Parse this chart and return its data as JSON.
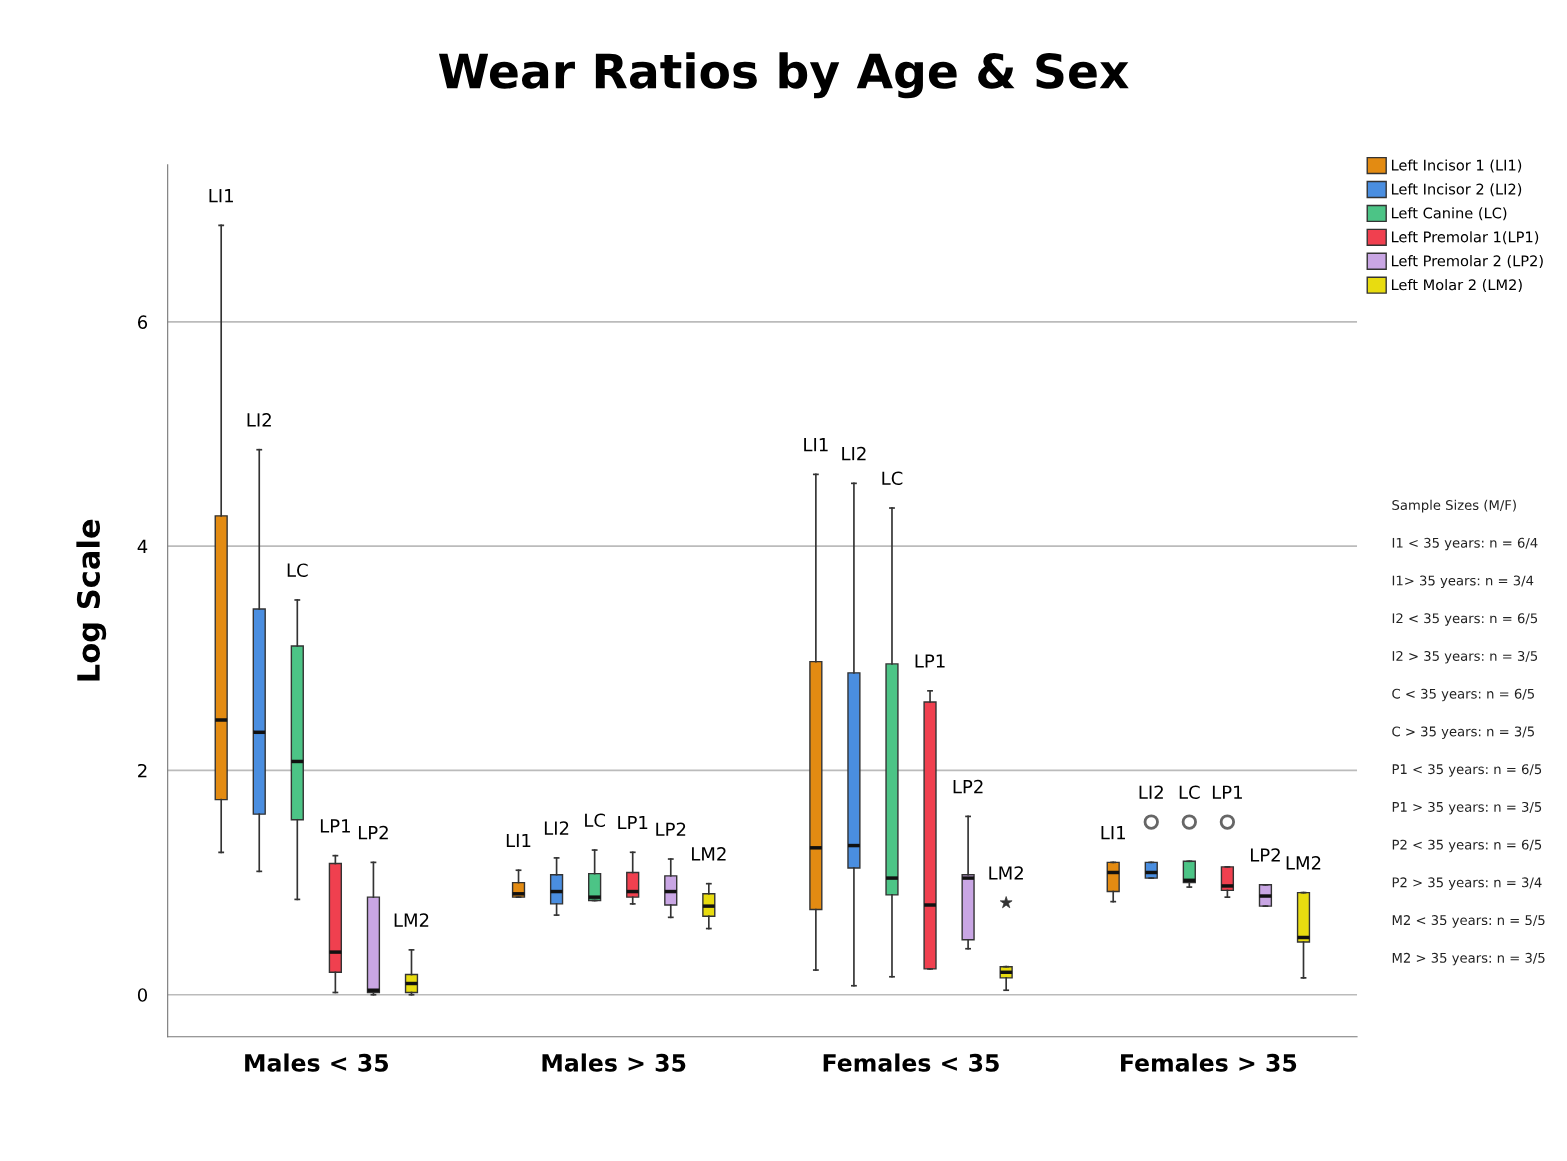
{
  "chart_data": {
    "type": "box",
    "title": "Wear Ratios by Age & Sex",
    "ylabel": "Log Scale",
    "categories": [
      "Males < 35",
      "Males > 35",
      "Females < 35",
      "Females > 35"
    ],
    "ylim": [
      -0.375,
      7.4
    ],
    "yticks": [
      0,
      2,
      4,
      6
    ],
    "grid": "y",
    "legend": "top right",
    "marker": "circle",
    "series": [
      {
        "name": "Left Incisor 1 (LI1)",
        "color": "#e38b12",
        "boxes": [
          {
            "low": 1.27,
            "q1": 1.74,
            "median": 2.45,
            "q3": 4.27,
            "high": 6.86
          },
          {
            "low": 0.87,
            "q1": 0.87,
            "median": 0.9,
            "q3": 1.0,
            "high": 1.11
          },
          {
            "low": 0.22,
            "q1": 0.76,
            "median": 1.31,
            "q3": 2.97,
            "high": 4.64
          },
          {
            "low": 0.83,
            "q1": 0.92,
            "median": 1.09,
            "q3": 1.18,
            "high": 1.18
          }
        ]
      },
      {
        "name": "Left Incisor 2 (LI2)",
        "color": "#4a8ee0",
        "boxes": [
          {
            "low": 1.1,
            "q1": 1.61,
            "median": 2.34,
            "q3": 3.44,
            "high": 4.86
          },
          {
            "low": 0.71,
            "q1": 0.81,
            "median": 0.92,
            "q3": 1.07,
            "high": 1.22
          },
          {
            "low": 0.08,
            "q1": 1.13,
            "median": 1.33,
            "q3": 2.87,
            "high": 4.56
          },
          {
            "low": 1.04,
            "q1": 1.04,
            "median": 1.09,
            "q3": 1.18,
            "high": 1.18,
            "outliers": [
              1.54
            ]
          }
        ]
      },
      {
        "name": "Left Canine (LC)",
        "color": "#4cc486",
        "boxes": [
          {
            "low": 0.85,
            "q1": 1.56,
            "median": 2.08,
            "q3": 3.11,
            "high": 3.52
          },
          {
            "low": 0.84,
            "q1": 0.84,
            "median": 0.87,
            "q3": 1.08,
            "high": 1.29
          },
          {
            "low": 0.16,
            "q1": 0.89,
            "median": 1.04,
            "q3": 2.95,
            "high": 4.34
          },
          {
            "low": 0.96,
            "q1": 1.0,
            "median": 1.02,
            "q3": 1.19,
            "high": 1.19,
            "outliers": [
              1.54
            ]
          }
        ]
      },
      {
        "name": "Left Premolar 1(LP1)",
        "color": "#f0404f",
        "boxes": [
          {
            "low": 0.02,
            "q1": 0.2,
            "median": 0.38,
            "q3": 1.17,
            "high": 1.24
          },
          {
            "low": 0.81,
            "q1": 0.87,
            "median": 0.92,
            "q3": 1.09,
            "high": 1.27
          },
          {
            "low": 0.23,
            "q1": 0.23,
            "median": 0.8,
            "q3": 2.61,
            "high": 2.71
          },
          {
            "low": 0.87,
            "q1": 0.93,
            "median": 0.97,
            "q3": 1.14,
            "high": 1.14,
            "outliers": [
              1.54
            ]
          }
        ]
      },
      {
        "name": "Left Premolar 2 (LP2)",
        "color": "#c9a6e4",
        "boxes": [
          {
            "low": 0.0,
            "q1": 0.02,
            "median": 0.04,
            "q3": 0.87,
            "high": 1.18
          },
          {
            "low": 0.69,
            "q1": 0.8,
            "median": 0.92,
            "q3": 1.06,
            "high": 1.21
          },
          {
            "low": 0.41,
            "q1": 0.49,
            "median": 1.04,
            "q3": 1.07,
            "high": 1.59
          },
          {
            "low": 0.79,
            "q1": 0.79,
            "median": 0.88,
            "q3": 0.98,
            "high": 0.98
          }
        ]
      },
      {
        "name": "Left Molar 2 (LM2)",
        "color": "#e8dc10",
        "marker": "star",
        "boxes": [
          {
            "low": 0.0,
            "q1": 0.02,
            "median": 0.1,
            "q3": 0.18,
            "high": 0.4
          },
          {
            "low": 0.59,
            "q1": 0.7,
            "median": 0.79,
            "q3": 0.9,
            "high": 0.99
          },
          {
            "low": 0.04,
            "q1": 0.15,
            "median": 0.2,
            "q3": 0.25,
            "high": 0.25,
            "outliers": [
              0.82
            ]
          },
          {
            "low": 0.15,
            "q1": 0.47,
            "median": 0.51,
            "q3": 0.91,
            "high": 0.91
          }
        ]
      }
    ],
    "annotations": [
      "LI1",
      "LI2",
      "LC",
      "LP1",
      "LP2",
      "LM2",
      "LI1",
      "LI2",
      "LC",
      "LP1",
      "LP2",
      "LM2",
      "LI1",
      "LI2",
      "LC",
      "LP1",
      "LP2",
      "LM2",
      "LI1",
      "LI2",
      "LC",
      "LP1",
      "LP2",
      "LM2",
      "Sample Sizes (M/F)",
      "I1 < 35 years: n = 6/4",
      "I1> 35 years: n = 3/4",
      "I2 < 35 years: n = 6/5",
      "I2 > 35 years: n = 3/5",
      "C < 35 years: n = 6/5",
      "C > 35 years: n = 3/5",
      "P1 < 35 years: n = 6/5",
      "P1 > 35 years: n = 3/5",
      "P2 < 35 years: n = 6/5",
      "P2 > 35 years: n = 3/4",
      "M2 < 35 years: n = 5/5",
      "M2 > 35 years: n = 3/5"
    ]
  }
}
